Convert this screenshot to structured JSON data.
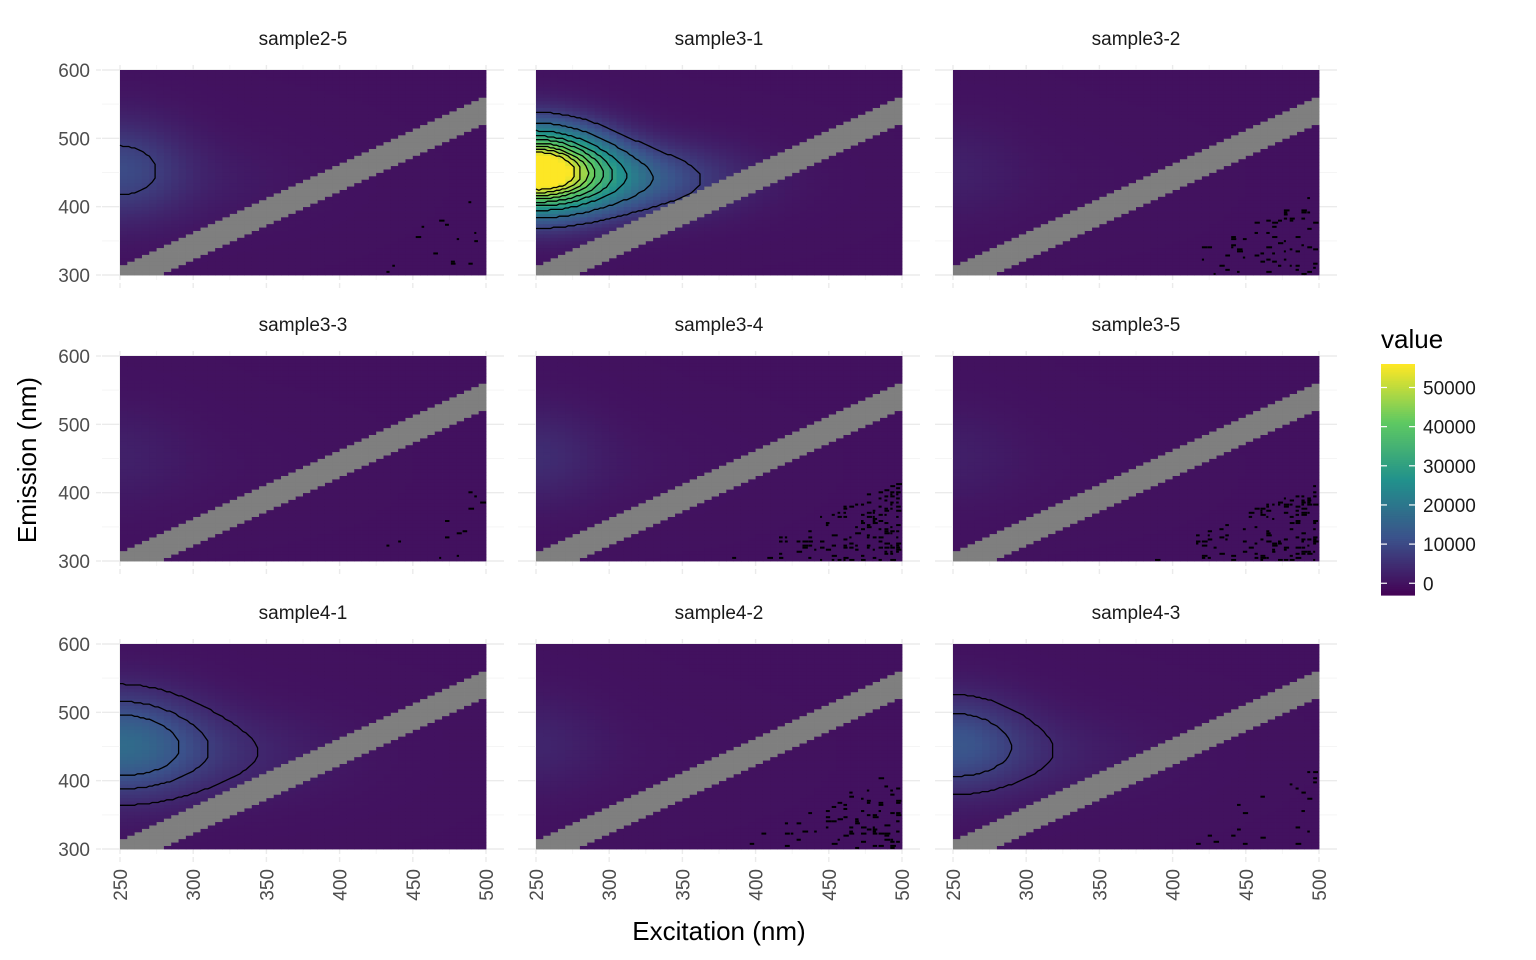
{
  "chart_data": {
    "type": "heatmap",
    "facets": [
      {
        "title": "sample2-5",
        "peak": 9500,
        "spread_ex": 45,
        "spread_em": 72,
        "lobe": 0.35,
        "contours": [
          8000
        ],
        "noise": 0.12
      },
      {
        "title": "sample3-1",
        "peak": 56000,
        "spread_ex": 48,
        "spread_em": 60,
        "lobe": 0.55,
        "contours": [
          8000,
          16000,
          24000,
          30000,
          35000,
          40000,
          44000,
          48000,
          52000
        ],
        "noise": 0.0
      },
      {
        "title": "sample3-2",
        "peak": 2500,
        "spread_ex": 45,
        "spread_em": 70,
        "lobe": 0.3,
        "contours": [],
        "noise": 0.45
      },
      {
        "title": "sample3-3",
        "peak": 2500,
        "spread_ex": 45,
        "spread_em": 70,
        "lobe": 0.3,
        "contours": [],
        "noise": 0.05
      },
      {
        "title": "sample3-4",
        "peak": 4500,
        "spread_ex": 45,
        "spread_em": 70,
        "lobe": 0.3,
        "contours": [],
        "noise": 0.9
      },
      {
        "title": "sample3-5",
        "peak": 2200,
        "spread_ex": 45,
        "spread_em": 70,
        "lobe": 0.3,
        "contours": [],
        "noise": 0.9
      },
      {
        "title": "sample4-1",
        "peak": 14500,
        "spread_ex": 55,
        "spread_em": 75,
        "lobe": 0.6,
        "contours": [
          4000,
          8000,
          12000
        ],
        "noise": 0.0
      },
      {
        "title": "sample4-2",
        "peak": 3200,
        "spread_ex": 45,
        "spread_em": 70,
        "lobe": 0.3,
        "contours": [],
        "noise": 0.55
      },
      {
        "title": "sample4-3",
        "peak": 11000,
        "spread_ex": 50,
        "spread_em": 70,
        "lobe": 0.5,
        "contours": [
          4000,
          8000
        ],
        "noise": 0.25
      }
    ],
    "x": {
      "label": "Excitation (nm)",
      "range": [
        250,
        500
      ],
      "ticks": [
        "250",
        "300",
        "350",
        "400",
        "450",
        "500"
      ]
    },
    "y": {
      "label": "Emission (nm)",
      "range": [
        300,
        600
      ],
      "ticks": [
        "300",
        "400",
        "500",
        "600"
      ]
    },
    "legend": {
      "title": "value",
      "placement": "right",
      "range": [
        -3000,
        56000
      ],
      "labels": [
        "0",
        "10000",
        "20000",
        "30000",
        "40000",
        "50000"
      ],
      "values": [
        0,
        10000,
        20000,
        30000,
        40000,
        50000
      ],
      "colors": [
        "#440154",
        "#3b528b",
        "#21918c",
        "#5ec962",
        "#fde725"
      ]
    },
    "scatter_band_color": "#7f7f7f",
    "grid": true
  }
}
